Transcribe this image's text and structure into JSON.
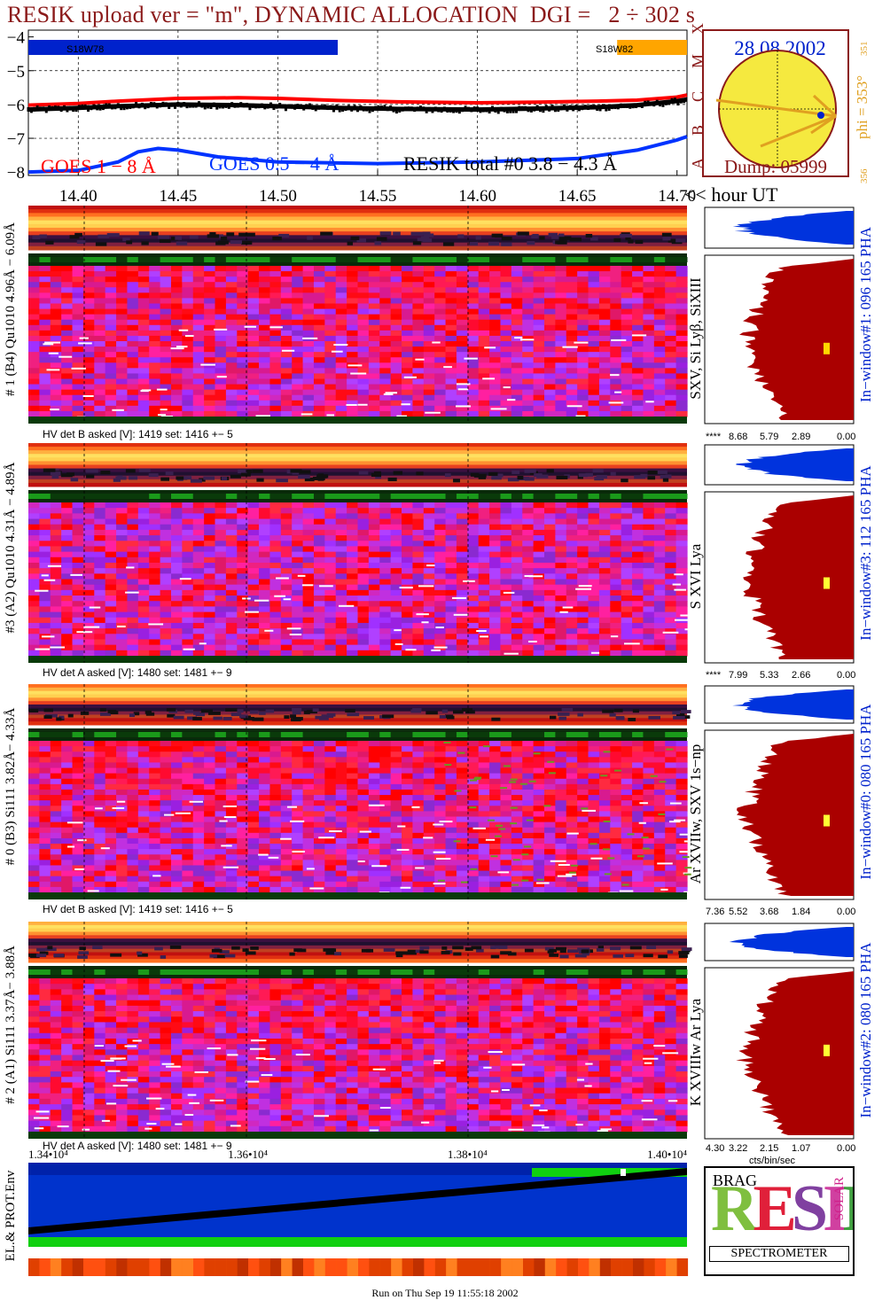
{
  "title": "RESIK upload ver = \"m\", DYNAMIC ALLOCATION  DGI =   2 ÷ 302 s",
  "footer": "Run on Thu Sep 19 11:55:18 2002",
  "colors": {
    "goes18": "#ff0000",
    "goes054": "#0033ff",
    "resik_total": "#000000",
    "title": "#8b1a1a",
    "histogram": "#aa0000",
    "pha_blue": "#0033dd",
    "mark_blue": "#0022cc",
    "mark_orange": "#ffa500",
    "sun": "#f5e93f",
    "sun_border": "#8b1a1a",
    "arrow": "#e0a020"
  },
  "chart_data": [
    {
      "type": "line",
      "name": "goes-lightcurve",
      "x_axis_label": "<< hour UT",
      "x_ticks": [
        "14.40",
        "14.45",
        "14.50",
        "14.55",
        "14.60",
        "14.65",
        "14.70"
      ],
      "xlim": [
        14.375,
        14.705
      ],
      "y_ticks": [
        "−4",
        "−5",
        "−6",
        "−7",
        "−8"
      ],
      "ylim": [
        -8.1,
        -3.8
      ],
      "grid": "dashed vertical + horizontal",
      "class_letters": [
        "A",
        "B",
        "C",
        "M",
        "X"
      ],
      "legend": [
        {
          "label": "GOES 1 − 8 Å",
          "color": "#ff0000"
        },
        {
          "label": "GOES 0.5 − 4 Å",
          "color": "#0033ff"
        },
        {
          "label": "RESIK total #0  3.8 − 4.3 Å",
          "color": "#000000"
        }
      ],
      "bars": [
        {
          "label": "S18W78",
          "x_start": 14.375,
          "x_end": 14.53,
          "color": "#0022cc"
        },
        {
          "label": "S18W82",
          "x_start": 14.67,
          "x_end": 14.705,
          "color": "#ffa500"
        }
      ],
      "series": [
        {
          "name": "GOES 1 − 8 Å",
          "x": [
            14.375,
            14.4,
            14.42,
            14.45,
            14.48,
            14.5,
            14.53,
            14.56,
            14.6,
            14.63,
            14.66,
            14.68,
            14.7,
            14.705
          ],
          "y": [
            -6.02,
            -5.97,
            -5.9,
            -5.82,
            -5.8,
            -5.82,
            -5.88,
            -5.92,
            -5.95,
            -5.93,
            -5.9,
            -5.87,
            -5.78,
            -5.72
          ]
        },
        {
          "name": "RESIK total #0  3.8 − 4.3 Å",
          "x": [
            14.375,
            14.4,
            14.42,
            14.45,
            14.48,
            14.5,
            14.53,
            14.56,
            14.6,
            14.63,
            14.66,
            14.68,
            14.7,
            14.705
          ],
          "y": [
            -6.15,
            -6.1,
            -6.05,
            -6.0,
            -6.02,
            -6.05,
            -6.1,
            -6.13,
            -6.15,
            -6.12,
            -6.08,
            -6.02,
            -5.9,
            -5.85
          ]
        },
        {
          "name": "GOES 0.5 − 4 Å",
          "x": [
            14.375,
            14.4,
            14.42,
            14.43,
            14.44,
            14.45,
            14.47,
            14.5,
            14.55,
            14.6,
            14.65,
            14.68,
            14.7,
            14.705
          ],
          "y": [
            -8.0,
            -7.95,
            -7.7,
            -7.4,
            -7.3,
            -7.35,
            -7.55,
            -7.7,
            -7.75,
            -7.7,
            -7.6,
            -7.35,
            -7.05,
            -6.95
          ]
        }
      ]
    },
    {
      "type": "other",
      "name": "sun-disk",
      "date": "28 08 2002",
      "dump": "Dump: 05999",
      "phi_label": "phi = 353°",
      "phi_small_top": "351",
      "phi_small_bottom": "356"
    },
    {
      "type": "heatmap",
      "name": "spectrograms",
      "panels": [
        {
          "side_label": "# 1 (B4) Qu1010 4.96Å − 6.09Å",
          "right_label": "SXV, Si Lyβ, SiXIII",
          "hv": "HV det B asked [V]:  1419 set:  1416 +−    5",
          "pha_label": "In−window#1:  096 165 PHA",
          "pha_ticks": [
            "****",
            "8.68",
            "5.79",
            "2.89",
            "0.00"
          ],
          "mark_y": 0.52,
          "mark_color": "#ffd700"
        },
        {
          "side_label": "#3 (A2) Qu1010  4.31Å − 4.89Å",
          "right_label": "S XVI Lya",
          "hv": "HV det A asked [V]:  1480 set:  1481 +−    9",
          "pha_label": "In−window#3:  112 165 PHA",
          "pha_ticks": [
            "****",
            "7.99",
            "5.33",
            "2.66",
            "0.00"
          ],
          "mark_y": 0.5,
          "mark_color": "#ffff33"
        },
        {
          "side_label": "# 0 (B3) Si111  3.82Å− 4.33Å",
          "right_label": "Ar XVIIw,  SXV 1s−np",
          "hv": "HV det B asked [V]:  1419 set:  1416 +−    5",
          "pha_label": "In−window#0:  080 165 PHA",
          "pha_ticks": [
            "7.36",
            "5.52",
            "3.68",
            "1.84",
            "0.00"
          ],
          "mark_y": 0.5,
          "mark_color": "#ffff33"
        },
        {
          "side_label": "# 2 (A1) Si111  3.37Å− 3.88Å",
          "right_label": "K XVIIIw  Ar Lya",
          "hv": "HV det A asked [V]:  1480 set:  1481 +−    9",
          "pha_label": "In−window#2:  080 165 PHA",
          "pha_ticks": [
            "4.30",
            "3.22",
            "2.15",
            "1.07",
            "0.00"
          ],
          "mark_y": 0.45,
          "mark_color": "#ffff33"
        }
      ],
      "pha_xlabel": "cts/bin/sec"
    },
    {
      "type": "other",
      "name": "environment",
      "label": "EL.& PROT.Env",
      "x_ticks": [
        "1.34•10⁴",
        "1.36•10⁴",
        "1.38•10⁴",
        "1.40•10⁴"
      ],
      "x_ticks_values": [
        13400,
        13600,
        13800,
        14000
      ]
    }
  ],
  "logo": {
    "word": "RESIK",
    "small_a": "BRAG",
    "small_b": "SOLAR",
    "banner": "SPECTROMETER"
  }
}
